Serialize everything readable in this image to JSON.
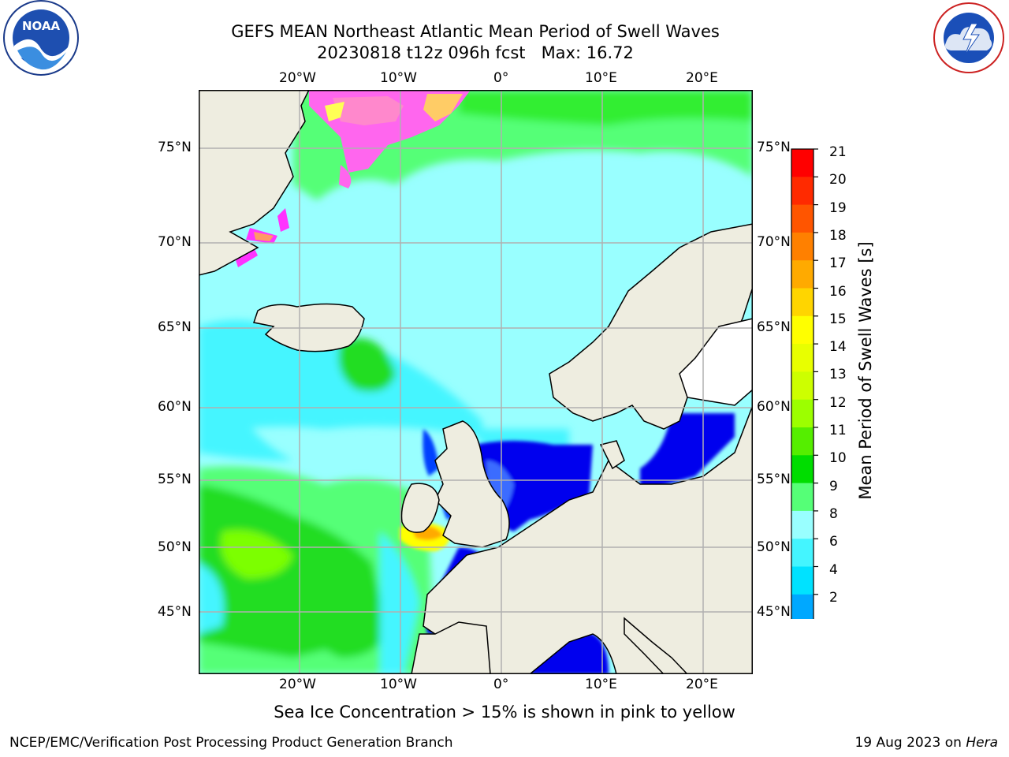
{
  "header": {
    "title_line1": "GEFS MEAN Northeast Atlantic Mean Period of Swell Waves",
    "title_line2": "20230818 t12z 096h fcst   Max: 16.72"
  },
  "logos": {
    "left": "NOAA",
    "left_ring": "NATIONAL OCEANIC AND ATMOSPHERIC ADMINISTRATION · U.S. DEPARTMENT OF COMMERCE",
    "right_ring": "NATIONAL WEATHER SERVICE"
  },
  "map": {
    "lon_labels": [
      "20°W",
      "10°W",
      "0°",
      "10°E",
      "20°E"
    ],
    "lat_labels_left": [
      "75°N",
      "70°N",
      "65°N",
      "60°N",
      "55°N",
      "50°N",
      "45°N"
    ],
    "lat_labels_right": [
      "75°N",
      "70°N",
      "65°N",
      "60°N",
      "55°N",
      "50°N",
      "45°N"
    ],
    "note": "Sea Ice Concentration > 15% is shown in pink to yellow"
  },
  "colorbar": {
    "label": "Mean Period of Swell Waves [s]",
    "ticks": [
      "21",
      "20",
      "19",
      "18",
      "17",
      "16",
      "15",
      "14",
      "13",
      "12",
      "11",
      "10",
      "9",
      "8",
      "6",
      "4",
      "2"
    ],
    "colors_top_to_bottom": [
      "#ff0000",
      "#ff2a00",
      "#ff5500",
      "#ff8000",
      "#ffaa00",
      "#ffd500",
      "#ffff00",
      "#e8ff00",
      "#cdff00",
      "#9cff00",
      "#55ee00",
      "#00dd00",
      "#55ff77",
      "#99ffff",
      "#44f5ff",
      "#00e2ff",
      "#00a8ff",
      "#0060ff"
    ],
    "extend_color": "#0000ff"
  },
  "footer": {
    "left": "NCEP/EMC/Verification Post Processing Product Generation Branch",
    "right_date": "19 Aug 2023 on ",
    "right_host": "Hera"
  }
}
